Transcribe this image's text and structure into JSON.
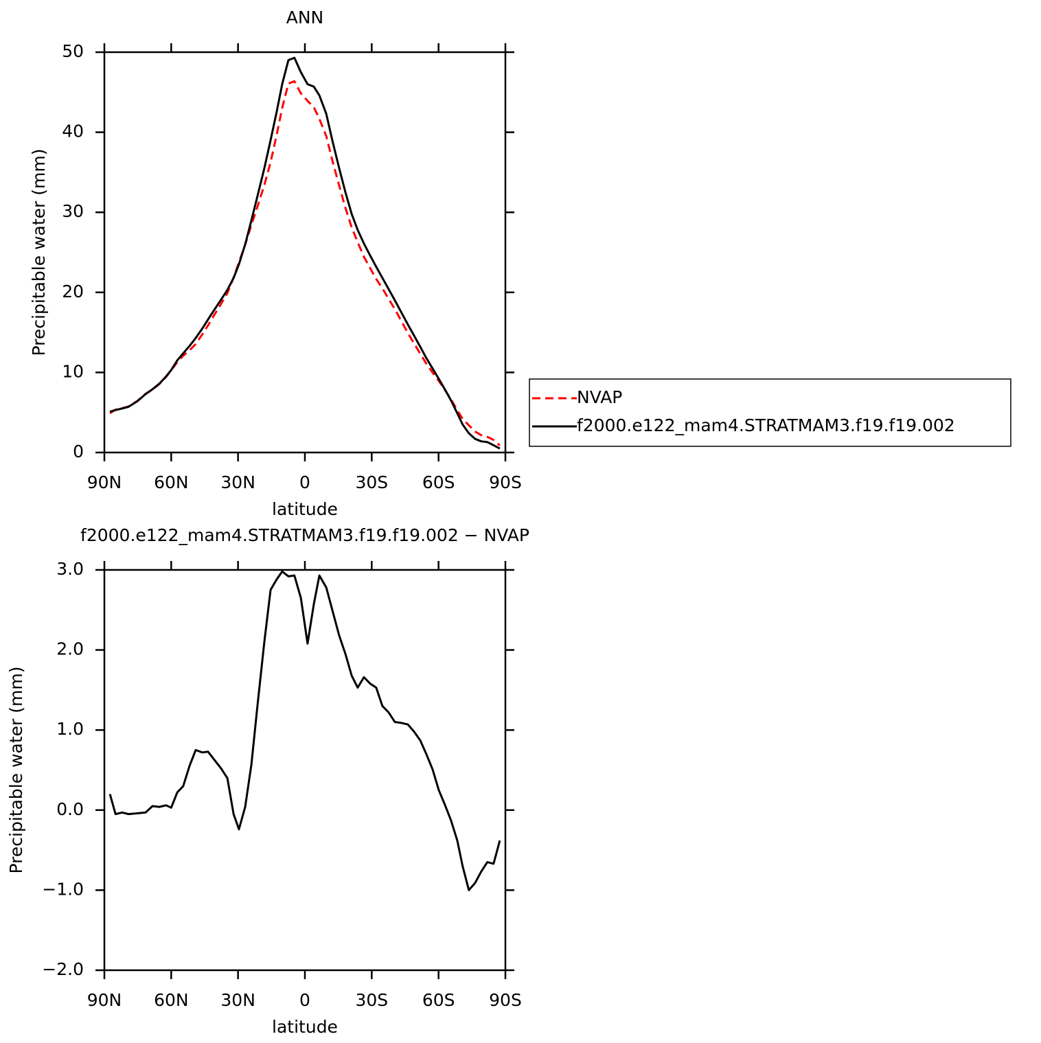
{
  "chart_data": [
    {
      "type": "line",
      "title": "ANN",
      "xlabel": "latitude",
      "ylabel": "Precipitable water (mm)",
      "x": [
        87.5,
        85,
        82,
        79.2,
        75.2,
        71.5,
        68.4,
        65.3,
        62.3,
        60,
        57.3,
        54.6,
        51.8,
        49,
        46,
        43.5,
        40.7,
        37.6,
        34.8,
        32,
        29.6,
        26.8,
        24,
        21.3,
        18.2,
        15.4,
        12.7,
        10.2,
        7.4,
        4.7,
        1.8,
        -1.2,
        -4,
        -6.5,
        -9.6,
        -12.3,
        -15.4,
        -18.2,
        -21,
        -23.7,
        -26.5,
        -29.3,
        -32,
        -34.8,
        -37.6,
        -40.4,
        -43.1,
        -46.2,
        -49,
        -51.8,
        -54.5,
        -57.3,
        -60.1,
        -62.8,
        -65.6,
        -68.4,
        -70.8,
        -73.6,
        -76.4,
        -79.1,
        -81.9,
        -84.7,
        -87.5
      ],
      "series": [
        {
          "name": "NVAP",
          "color": "#ff0000",
          "dash": true,
          "values": [
            4.9,
            5.35,
            5.53,
            5.75,
            6.44,
            7.33,
            7.85,
            8.56,
            9.44,
            10.27,
            11.28,
            12.1,
            12.75,
            13.55,
            14.78,
            15.87,
            17.17,
            18.58,
            19.9,
            21.85,
            23.74,
            25.96,
            28.43,
            30.7,
            33.4,
            36.25,
            39.62,
            43.02,
            46.08,
            46.37,
            44.85,
            43.92,
            43.13,
            41.67,
            39.52,
            36.5,
            33.32,
            30.55,
            28.12,
            26.27,
            24.44,
            23.02,
            21.67,
            20.5,
            19.18,
            17.9,
            16.51,
            14.93,
            13.62,
            12.33,
            11.1,
            9.99,
            8.95,
            7.83,
            6.63,
            5.28,
            4.2,
            3.4,
            2.61,
            2.17,
            1.95,
            1.57,
            0.88
          ]
        },
        {
          "name": "f2000.e122_mam4.STRATMAM3.f19.f19.002",
          "color": "#000000",
          "dash": false,
          "values": [
            5.1,
            5.3,
            5.5,
            5.7,
            6.4,
            7.3,
            7.9,
            8.6,
            9.5,
            10.3,
            11.5,
            12.4,
            13.3,
            14.3,
            15.5,
            16.6,
            17.8,
            19.1,
            20.3,
            21.8,
            23.5,
            26,
            29,
            32,
            35.5,
            39,
            42.5,
            46,
            49,
            49.3,
            47.5,
            46,
            45.7,
            44.6,
            42.3,
            39,
            35.5,
            32.5,
            29.8,
            27.8,
            26.1,
            24.6,
            23.2,
            21.8,
            20.4,
            19,
            17.6,
            16,
            14.6,
            13.2,
            11.8,
            10.5,
            9.2,
            7.9,
            6.5,
            4.9,
            3.5,
            2.4,
            1.7,
            1.4,
            1.3,
            0.9,
            0.5
          ]
        }
      ],
      "xlim": [
        90,
        -90
      ],
      "xticks": [
        {
          "value": 90,
          "label": "90N"
        },
        {
          "value": 60,
          "label": "60N"
        },
        {
          "value": 30,
          "label": "30N"
        },
        0,
        {
          "value": -30,
          "label": "30S"
        },
        {
          "value": -60,
          "label": "60S"
        },
        {
          "value": -90,
          "label": "90S"
        }
      ],
      "ylim": [
        0,
        50
      ],
      "yticks": [
        0,
        10,
        20,
        30,
        40,
        50
      ],
      "legend": "outside-right"
    },
    {
      "type": "line",
      "title": "f2000.e122_mam4.STRATMAM3.f19.f19.002 − NVAP",
      "xlabel": "latitude",
      "ylabel": "Precipitable water (mm)",
      "x": [
        87.5,
        85,
        82,
        79.2,
        75.2,
        71.5,
        68.4,
        65.3,
        62.3,
        60,
        57.3,
        54.6,
        51.8,
        49,
        46,
        43.5,
        40.7,
        37.6,
        34.8,
        32,
        29.6,
        26.8,
        24,
        21.3,
        18.2,
        15.4,
        12.7,
        10.2,
        7.4,
        4.7,
        1.8,
        -1.2,
        -4,
        -6.5,
        -9.6,
        -12.3,
        -15.4,
        -18.2,
        -21,
        -23.7,
        -26.5,
        -29.3,
        -32,
        -34.8,
        -37.6,
        -40.4,
        -43.1,
        -46.2,
        -49,
        -51.8,
        -54.5,
        -57.3,
        -60.1,
        -62.8,
        -65.6,
        -68.4,
        -70.8,
        -73.6,
        -76.4,
        -79.1,
        -81.9,
        -84.7,
        -87.5
      ],
      "series": [
        {
          "color": "#000000",
          "dash": false,
          "values": [
            0.2,
            -0.05,
            -0.03,
            -0.05,
            -0.04,
            -0.03,
            0.05,
            0.04,
            0.06,
            0.03,
            0.22,
            0.3,
            0.55,
            0.75,
            0.72,
            0.73,
            0.63,
            0.52,
            0.4,
            -0.05,
            -0.24,
            0.04,
            0.57,
            1.3,
            2.1,
            2.75,
            2.88,
            2.98,
            2.92,
            2.93,
            2.65,
            2.08,
            2.57,
            2.93,
            2.78,
            2.5,
            2.18,
            1.95,
            1.68,
            1.53,
            1.66,
            1.58,
            1.53,
            1.3,
            1.22,
            1.1,
            1.09,
            1.07,
            0.98,
            0.87,
            0.7,
            0.51,
            0.25,
            0.07,
            -0.13,
            -0.38,
            -0.7,
            -1.0,
            -0.91,
            -0.77,
            -0.65,
            -0.67,
            -0.38
          ]
        }
      ],
      "xlim": [
        90,
        -90
      ],
      "xticks": [
        {
          "value": 90,
          "label": "90N"
        },
        {
          "value": 60,
          "label": "60N"
        },
        {
          "value": 30,
          "label": "30N"
        },
        0,
        {
          "value": -30,
          "label": "30S"
        },
        {
          "value": -60,
          "label": "60S"
        },
        {
          "value": -90,
          "label": "90S"
        }
      ],
      "ylim": [
        -2,
        3
      ],
      "yticks": [
        {
          "value": -2,
          "label": "−2.0"
        },
        {
          "value": -1,
          "label": "−1.0"
        },
        {
          "value": 0,
          "label": "0.0"
        },
        {
          "value": 1,
          "label": "1.0"
        },
        {
          "value": 2,
          "label": "2.0"
        },
        {
          "value": 3,
          "label": "3.0"
        }
      ]
    }
  ]
}
